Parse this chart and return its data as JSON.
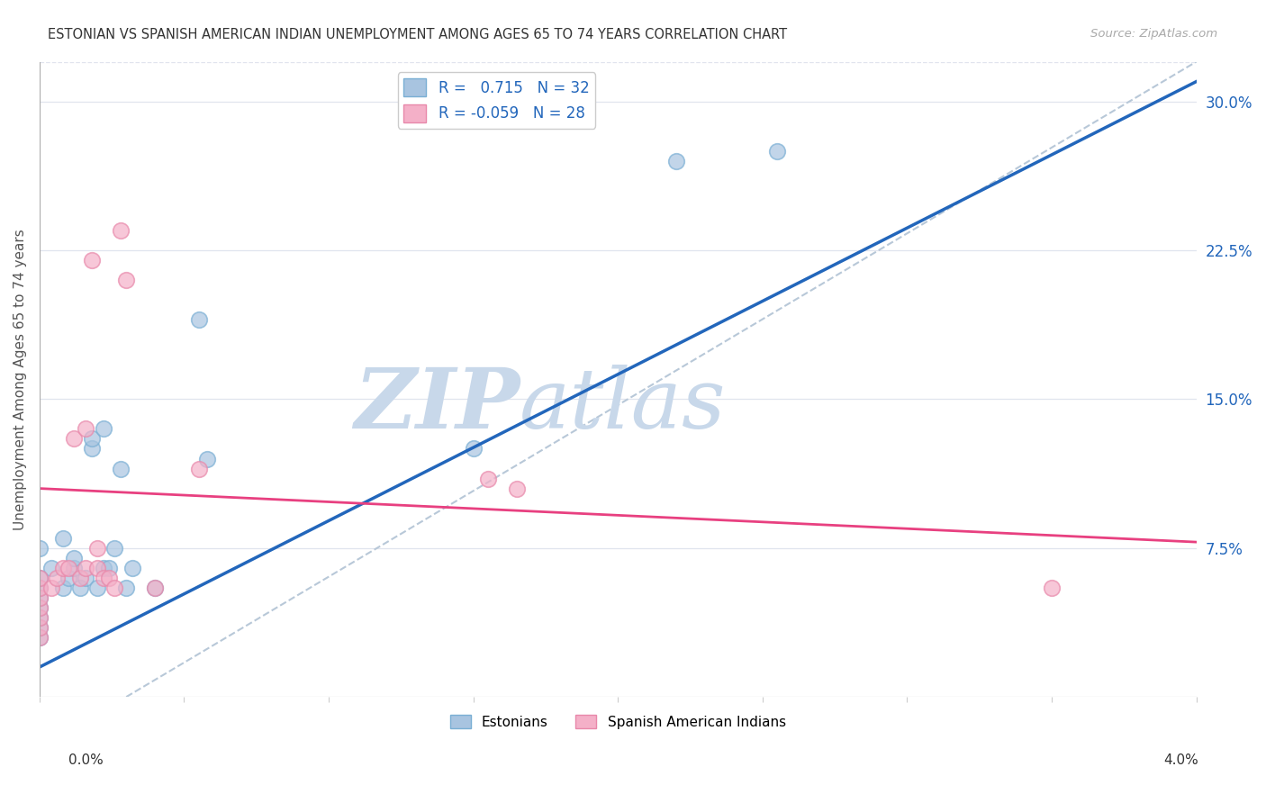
{
  "title": "ESTONIAN VS SPANISH AMERICAN INDIAN UNEMPLOYMENT AMONG AGES 65 TO 74 YEARS CORRELATION CHART",
  "source": "Source: ZipAtlas.com",
  "ylabel": "Unemployment Among Ages 65 to 74 years",
  "xmin": 0.0,
  "xmax": 4.0,
  "ymin": 0.0,
  "ymax": 32.0,
  "yticks_right": [
    7.5,
    15.0,
    22.5,
    30.0
  ],
  "ytick_labels_right": [
    "7.5%",
    "15.0%",
    "22.5%",
    "30.0%"
  ],
  "R_estonian": 0.715,
  "N_estonian": 32,
  "R_spanish": -0.059,
  "N_spanish": 28,
  "estonian_color": "#a8c4e0",
  "estonian_edge_color": "#7aafd4",
  "estonian_line_color": "#2266bb",
  "spanish_color": "#f4b0c8",
  "spanish_edge_color": "#e888aa",
  "spanish_line_color": "#e84080",
  "ref_line_color": "#b8c8d8",
  "watermark_zip_color": "#c8d8ea",
  "watermark_atlas_color": "#c8d8ea",
  "title_color": "#333333",
  "source_color": "#aaaaaa",
  "background_color": "#ffffff",
  "grid_color": "#e0e4ee",
  "legend_text_color": "#2266bb",
  "estonian_x": [
    0.0,
    0.0,
    0.0,
    0.0,
    0.0,
    0.0,
    0.0,
    0.0,
    0.04,
    0.08,
    0.08,
    0.1,
    0.12,
    0.12,
    0.14,
    0.16,
    0.18,
    0.18,
    0.2,
    0.22,
    0.22,
    0.24,
    0.26,
    0.28,
    0.3,
    0.32,
    0.4,
    0.55,
    0.58,
    1.5,
    2.2,
    2.55
  ],
  "estonian_y": [
    3.0,
    3.5,
    4.0,
    4.5,
    5.0,
    5.5,
    6.0,
    7.5,
    6.5,
    5.5,
    8.0,
    6.0,
    6.5,
    7.0,
    5.5,
    6.0,
    12.5,
    13.0,
    5.5,
    6.5,
    13.5,
    6.5,
    7.5,
    11.5,
    5.5,
    6.5,
    5.5,
    19.0,
    12.0,
    12.5,
    27.0,
    27.5
  ],
  "spanish_x": [
    0.0,
    0.0,
    0.0,
    0.0,
    0.0,
    0.0,
    0.0,
    0.04,
    0.06,
    0.08,
    0.1,
    0.12,
    0.14,
    0.16,
    0.16,
    0.18,
    0.2,
    0.2,
    0.22,
    0.24,
    0.26,
    0.28,
    0.3,
    0.4,
    0.55,
    1.55,
    1.65,
    3.5
  ],
  "spanish_y": [
    3.0,
    3.5,
    4.0,
    4.5,
    5.0,
    5.5,
    6.0,
    5.5,
    6.0,
    6.5,
    6.5,
    13.0,
    6.0,
    6.5,
    13.5,
    22.0,
    6.5,
    7.5,
    6.0,
    6.0,
    5.5,
    23.5,
    21.0,
    5.5,
    11.5,
    11.0,
    10.5,
    5.5
  ],
  "blue_line_x0": 0.0,
  "blue_line_y0": 1.5,
  "blue_line_x1": 4.0,
  "blue_line_y1": 31.0,
  "pink_line_x0": 0.0,
  "pink_line_y0": 10.5,
  "pink_line_x1": 4.0,
  "pink_line_y1": 7.8,
  "ref_line_x0": 0.3,
  "ref_line_y0": 0.0,
  "ref_line_x1": 4.0,
  "ref_line_y1": 32.0
}
